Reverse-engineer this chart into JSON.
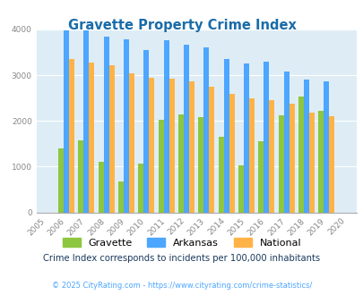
{
  "title": "Gravette Property Crime Index",
  "years": [
    2005,
    2006,
    2007,
    2008,
    2009,
    2010,
    2011,
    2012,
    2013,
    2014,
    2015,
    2016,
    2017,
    2018,
    2019,
    2020
  ],
  "gravette": [
    null,
    1400,
    1580,
    1100,
    670,
    1060,
    2020,
    2140,
    2090,
    1650,
    1020,
    1560,
    2130,
    2540,
    2230,
    null
  ],
  "arkansas": [
    null,
    3980,
    3980,
    3840,
    3790,
    3560,
    3760,
    3660,
    3610,
    3360,
    3260,
    3300,
    3090,
    2910,
    2870,
    null
  ],
  "national": [
    null,
    3360,
    3280,
    3220,
    3050,
    2950,
    2920,
    2870,
    2740,
    2600,
    2500,
    2460,
    2380,
    2190,
    2110,
    null
  ],
  "gravette_color": "#8dc63f",
  "arkansas_color": "#4da6ff",
  "national_color": "#ffb347",
  "background_color": "#deedf5",
  "title_color": "#1a6ca8",
  "ylim": [
    0,
    4000
  ],
  "yticks": [
    0,
    1000,
    2000,
    3000,
    4000
  ],
  "subtitle": "Crime Index corresponds to incidents per 100,000 inhabitants",
  "footer": "© 2025 CityRating.com - https://www.cityrating.com/crime-statistics/",
  "subtitle_color": "#1a3a5c",
  "footer_color": "#4da6ff",
  "bar_width": 0.27
}
